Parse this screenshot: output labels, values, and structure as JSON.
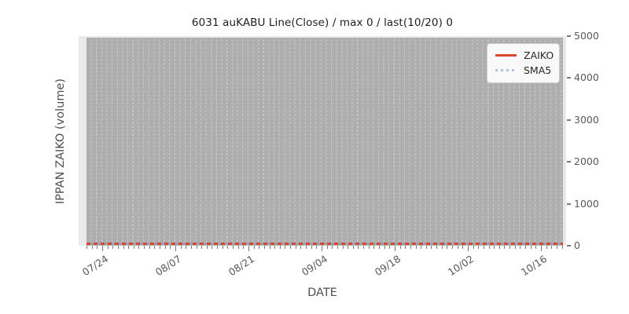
{
  "title": "6031 auKABU Line(Close) / max 0 / last(10/20) 0",
  "axes": {
    "xlabel": "DATE",
    "ylabel": "IPPAN ZAIKO (volume)",
    "x_ticks": [
      "07/24",
      "08/07",
      "08/21",
      "09/04",
      "09/18",
      "10/02",
      "10/16"
    ],
    "y_ticks": [
      "0",
      "1000",
      "2000",
      "3000",
      "4000",
      "5000"
    ]
  },
  "legend": {
    "items": [
      {
        "label": "ZAIKO",
        "color": "#d9472f",
        "style": "solid"
      },
      {
        "label": "SMA5",
        "color": "#a8c5e4",
        "style": "dotted"
      }
    ]
  },
  "colors": {
    "zaiko_red": "#d9472f",
    "sma5_blue": "#a8c5e4",
    "plot_band_gray": "#aeaeae",
    "plot_margin_gray": "#e9e9e9",
    "gridline_gray": "#c9c9c9",
    "tick_text_gray": "#595959"
  },
  "chart_data": {
    "type": "line",
    "title": "6031 auKABU Line(Close) / max 0 / last(10/20) 0",
    "xlabel": "DATE",
    "ylabel": "IPPAN ZAIKO (volume)",
    "x_tick_labels": [
      "07/24",
      "08/07",
      "08/21",
      "09/04",
      "09/18",
      "10/02",
      "10/16"
    ],
    "x_minor_ticks": "daily",
    "ylim": [
      0,
      5000
    ],
    "y_ticks": [
      0,
      1000,
      2000,
      3000,
      4000,
      5000
    ],
    "y_axis_side": "right",
    "grid": "vertical dashed gridline per day over gray band",
    "legend_position": "upper right",
    "series": [
      {
        "name": "ZAIKO",
        "style": "solid",
        "color": "#d9472f",
        "constant_value": 0,
        "values_at_ticks": [
          0,
          0,
          0,
          0,
          0,
          0,
          0
        ]
      },
      {
        "name": "SMA5",
        "style": "dotted",
        "color": "#a8c5e4",
        "constant_value": 0,
        "values_at_ticks": [
          0,
          0,
          0,
          0,
          0,
          0,
          0
        ]
      }
    ],
    "stats_from_title": {
      "max": 0,
      "last_date": "10/20",
      "last_value": 0
    }
  }
}
